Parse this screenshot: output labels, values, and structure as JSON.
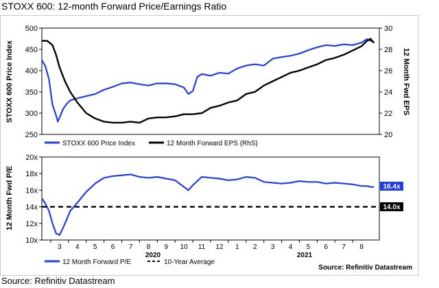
{
  "title": "STOXX 600: 12-month Forward Price/Earnings Ratio",
  "footer_source": "Source: Refinitiv Datastream",
  "colors": {
    "blue": "#1f3ce6",
    "black": "#000000",
    "label_blue": "#1f3ce6",
    "label_black": "#000000"
  },
  "chart_data": [
    {
      "type": "line",
      "panel": "top",
      "ylabel_left": "STOXX 600 Price Index",
      "ylabel_right": "12 Month Fwd EPS",
      "ylim_left": [
        250,
        500
      ],
      "ylim_right": [
        20,
        30
      ],
      "yticks_left": [
        "250",
        "300",
        "350",
        "400",
        "450",
        "500"
      ],
      "yticks_right": [
        "20",
        "22",
        "24",
        "26",
        "28",
        "30"
      ],
      "x_unit": "month index (0 = start of Feb 2020)",
      "xlim": [
        0,
        19
      ],
      "series": [
        {
          "name": "STOXX 600 Price Index",
          "axis": "left",
          "color": "#1f3ce6",
          "x": [
            0,
            0.2,
            0.4,
            0.6,
            0.8,
            0.9,
            1.05,
            1.2,
            1.4,
            1.6,
            2.0,
            2.5,
            3.0,
            3.5,
            4.0,
            4.5,
            5.0,
            5.5,
            6.0,
            6.5,
            7.0,
            7.5,
            8.0,
            8.25,
            8.5,
            8.75,
            9.0,
            9.5,
            10.0,
            10.5,
            11.0,
            11.5,
            12.0,
            12.5,
            13.0,
            13.5,
            14.0,
            14.5,
            15.0,
            15.5,
            16.0,
            16.5,
            17.0,
            17.5,
            18.0,
            18.3,
            18.5,
            18.7
          ],
          "values": [
            425,
            410,
            380,
            320,
            295,
            280,
            295,
            310,
            322,
            330,
            335,
            340,
            345,
            355,
            362,
            370,
            372,
            368,
            365,
            370,
            370,
            368,
            360,
            345,
            352,
            385,
            392,
            388,
            395,
            393,
            405,
            412,
            415,
            412,
            428,
            432,
            435,
            440,
            448,
            455,
            460,
            458,
            462,
            460,
            466,
            474,
            470,
            468
          ]
        },
        {
          "name": "12 Month Forward EPS (RhS)",
          "axis": "right",
          "color": "#000000",
          "x": [
            0,
            0.3,
            0.6,
            0.8,
            1.0,
            1.3,
            1.6,
            2.0,
            2.5,
            3.0,
            3.5,
            4.0,
            4.5,
            5.0,
            5.5,
            6.0,
            6.5,
            7.0,
            7.5,
            8.0,
            8.5,
            9.0,
            9.5,
            10.0,
            10.5,
            11.0,
            11.5,
            12.0,
            12.5,
            13.0,
            13.5,
            14.0,
            14.5,
            15.0,
            15.5,
            16.0,
            16.5,
            17.0,
            17.5,
            18.0,
            18.3,
            18.5,
            18.7
          ],
          "values": [
            28.8,
            28.8,
            28.4,
            27.5,
            26.3,
            25.0,
            24.0,
            23.0,
            22.0,
            21.5,
            21.2,
            21.1,
            21.1,
            21.2,
            21.1,
            21.5,
            21.6,
            21.6,
            21.7,
            21.9,
            21.9,
            22.0,
            22.5,
            22.7,
            23.0,
            23.2,
            23.8,
            24.0,
            24.6,
            25.0,
            25.4,
            25.8,
            26.0,
            26.3,
            26.6,
            27.0,
            27.2,
            27.5,
            27.9,
            28.3,
            28.8,
            29.0,
            28.6
          ]
        }
      ],
      "legend": [
        "STOXX 600 Price Index",
        "12 Month Forward EPS (RhS)"
      ]
    },
    {
      "type": "line",
      "panel": "bottom",
      "ylabel": "12 Month Fwd P/E",
      "ylim": [
        10,
        20
      ],
      "yticks": [
        "10x",
        "12x",
        "14x",
        "16x",
        "18x",
        "20x"
      ],
      "x_tick_labels": [
        "3",
        "4",
        "5",
        "6",
        "7",
        "8",
        "9",
        "10",
        "11",
        "12",
        "1",
        "2",
        "3",
        "4",
        "5",
        "6",
        "7",
        "8"
      ],
      "x_year_labels": [
        "2020",
        "2021"
      ],
      "xlim": [
        0,
        19
      ],
      "series": [
        {
          "name": "12 Month Forward P/E",
          "color": "#1f3ce6",
          "x": [
            0,
            0.2,
            0.4,
            0.6,
            0.8,
            1.0,
            1.2,
            1.4,
            1.6,
            2.0,
            2.5,
            3.0,
            3.5,
            4.0,
            4.5,
            5.0,
            5.5,
            6.0,
            6.5,
            7.0,
            7.5,
            8.0,
            8.25,
            8.5,
            9.0,
            9.5,
            10.0,
            10.5,
            11.0,
            11.5,
            12.0,
            12.5,
            13.0,
            13.5,
            14.0,
            14.5,
            15.0,
            15.5,
            16.0,
            16.5,
            17.0,
            17.5,
            18.0,
            18.3,
            18.5,
            18.7
          ],
          "values": [
            15.0,
            14.4,
            13.5,
            12.0,
            10.8,
            10.6,
            11.5,
            12.5,
            13.5,
            14.5,
            15.8,
            16.8,
            17.5,
            17.7,
            17.8,
            17.9,
            17.6,
            17.5,
            17.6,
            17.4,
            17.2,
            16.4,
            16.0,
            16.6,
            17.6,
            17.5,
            17.4,
            17.2,
            17.3,
            17.6,
            17.5,
            17.0,
            16.9,
            16.8,
            16.9,
            17.1,
            17.0,
            17.0,
            16.8,
            16.9,
            16.8,
            16.7,
            16.5,
            16.5,
            16.4,
            16.4
          ]
        },
        {
          "name": "10-Year Average",
          "color": "#000000",
          "dashed": true,
          "x": [
            0,
            19
          ],
          "values": [
            14.0,
            14.0
          ]
        }
      ],
      "end_labels": [
        "16.4x",
        "14.0x"
      ],
      "legend": [
        "12 Month Forward P/E",
        "10-Year Average"
      ],
      "source": "Source: Refinitiv Datastream"
    }
  ]
}
